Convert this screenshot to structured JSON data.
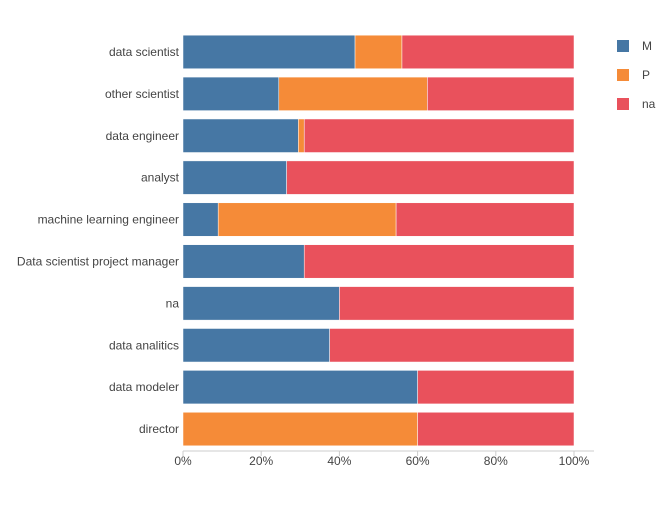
{
  "chart_data": {
    "type": "bar",
    "orientation": "horizontal",
    "stacked": true,
    "normalized": true,
    "categories": [
      "data scientist",
      "other scientist",
      "data engineer",
      "analyst",
      "machine learning engineer",
      "Data scientist project manager",
      "na",
      "data analitics",
      "data modeler",
      "director"
    ],
    "series": [
      {
        "name": "M",
        "color": "#4677a4",
        "values": [
          44,
          24.5,
          29.5,
          26.5,
          9,
          31,
          40,
          37.5,
          60,
          0
        ]
      },
      {
        "name": "P",
        "color": "#f58b38",
        "values": [
          12,
          38,
          1.5,
          0,
          45.5,
          0,
          0,
          0,
          0,
          60
        ]
      },
      {
        "name": "na",
        "color": "#e9515c",
        "values": [
          44,
          37.5,
          69,
          73.5,
          45.5,
          69,
          60,
          62.5,
          40,
          40
        ]
      }
    ],
    "x_ticks": [
      "0%",
      "20%",
      "40%",
      "60%",
      "80%",
      "100%"
    ],
    "xlim": [
      0,
      100
    ],
    "grid": false,
    "legend_position": "top-right"
  }
}
